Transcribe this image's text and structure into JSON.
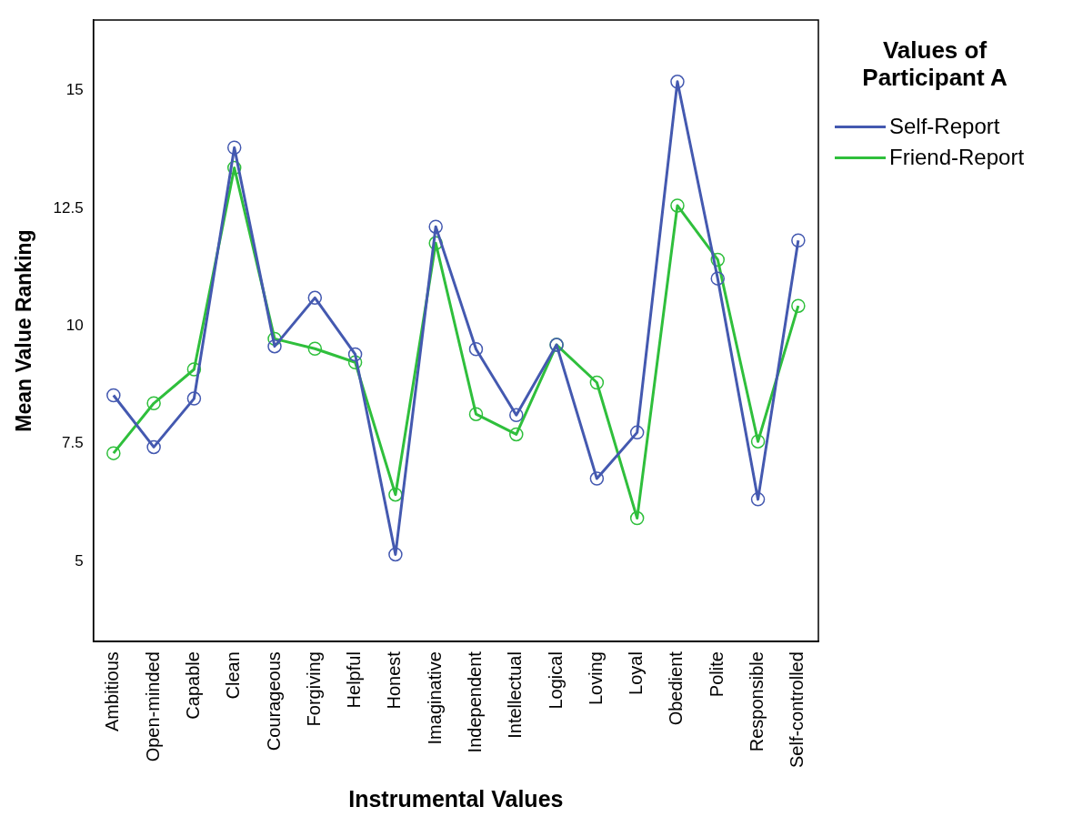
{
  "chart_data": {
    "type": "line",
    "xlabel": "Instrumental Values",
    "ylabel": "Mean Value Ranking",
    "legend_title": "Values of Participant A",
    "legend": "top right",
    "grid": false,
    "marker": "circle",
    "line_style": "solid",
    "categories": [
      "Ambitious",
      "Open-minded",
      "Capable",
      "Clean",
      "Courageous",
      "Forgiving",
      "Helpful",
      "Honest",
      "Imaginative",
      "Independent",
      "Intellectual",
      "Logical",
      "Loving",
      "Loyal",
      "Obedient",
      "Polite",
      "Responsible",
      "Self-controlled"
    ],
    "ylim": [
      3.3,
      16.5
    ],
    "yticks": [
      5,
      {
        "value": 7.5,
        "label": "7.5"
      },
      10,
      {
        "value": 12.5,
        "label": "12.5"
      },
      15
    ],
    "series": [
      {
        "name": "Self-Report",
        "color": "#4459b0",
        "values": [
          8.53,
          7.43,
          8.46,
          13.79,
          9.57,
          10.6,
          9.4,
          5.15,
          12.11,
          9.51,
          8.11,
          9.6,
          6.76,
          7.74,
          15.19,
          11.01,
          6.32,
          11.82
        ]
      },
      {
        "name": "Friend-Report",
        "color": "#2fbf3c",
        "values": [
          7.3,
          8.36,
          9.08,
          13.36,
          9.73,
          9.52,
          9.23,
          6.42,
          11.76,
          8.13,
          7.7,
          9.6,
          8.8,
          5.92,
          12.56,
          11.41,
          7.55,
          10.43
        ]
      }
    ]
  }
}
